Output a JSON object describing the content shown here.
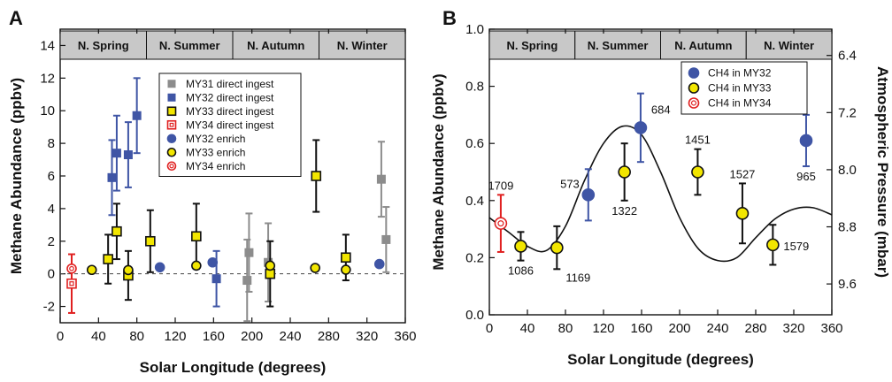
{
  "chart_data": [
    {
      "type": "scatter",
      "panel": "A",
      "xlabel": "Solar Longitude (degrees)",
      "ylabel": "Methane Abundance (ppbv)",
      "xlim": [
        0,
        360
      ],
      "ylim": [
        -3,
        15
      ],
      "xticks": [
        0,
        40,
        80,
        120,
        160,
        200,
        240,
        280,
        320,
        360
      ],
      "yticks": [
        -2,
        0,
        2,
        4,
        6,
        8,
        10,
        12,
        14
      ],
      "grid": false,
      "zero_line": "dashed",
      "legend_position": "top-center",
      "seasons": [
        {
          "label": "N. Spring",
          "start": 0,
          "end": 90
        },
        {
          "label": "N. Summer",
          "start": 90,
          "end": 180
        },
        {
          "label": "N. Autumn",
          "start": 180,
          "end": 270
        },
        {
          "label": "N. Winter",
          "start": 270,
          "end": 360
        }
      ],
      "series": [
        {
          "name": "MY31 direct ingest",
          "marker": "square",
          "fill": "#8c8c8c",
          "stroke": "#8c8c8c",
          "error_color": "#8c8c8c",
          "points": [
            {
              "x": 195,
              "y": -0.4,
              "err": 2.5
            },
            {
              "x": 197,
              "y": 1.3,
              "err": 2.4
            },
            {
              "x": 217,
              "y": 0.7,
              "err": 2.4
            },
            {
              "x": 335,
              "y": 5.8,
              "err": 2.3
            },
            {
              "x": 340,
              "y": 2.1,
              "err": 2.0
            }
          ]
        },
        {
          "name": "MY32 direct ingest",
          "marker": "square",
          "fill": "#3f55a5",
          "stroke": "#3f55a5",
          "error_color": "#3f55a5",
          "points": [
            {
              "x": 54,
              "y": 5.9,
              "err": 2.3
            },
            {
              "x": 59,
              "y": 7.4,
              "err": 2.3
            },
            {
              "x": 71,
              "y": 7.3,
              "err": 2.0
            },
            {
              "x": 80,
              "y": 9.7,
              "err": 2.3
            },
            {
              "x": 163,
              "y": -0.3,
              "err": 1.7
            }
          ]
        },
        {
          "name": "MY33 direct ingest",
          "marker": "square",
          "fill": "#f2e600",
          "stroke": "#111111",
          "error_color": "#111111",
          "points": [
            {
              "x": 50,
              "y": 0.9,
              "err": 1.5
            },
            {
              "x": 59,
              "y": 2.6,
              "err": 1.7
            },
            {
              "x": 71,
              "y": -0.1,
              "err": 1.5
            },
            {
              "x": 94,
              "y": 2.0,
              "err": 1.9
            },
            {
              "x": 142,
              "y": 2.3,
              "err": 2.0
            },
            {
              "x": 219,
              "y": 0.0,
              "err": 2.0
            },
            {
              "x": 267,
              "y": 6.0,
              "err": 2.2
            },
            {
              "x": 298,
              "y": 1.0,
              "err": 1.4
            }
          ]
        },
        {
          "name": "MY34 direct ingest",
          "marker": "open-square",
          "fill": "#ffffff",
          "stroke": "#e02020",
          "error_color": "#e02020",
          "points": [
            {
              "x": 12,
              "y": -0.6,
              "err": 1.8
            }
          ]
        },
        {
          "name": "MY32 enrich",
          "marker": "circle",
          "fill": "#3f55a5",
          "stroke": "#3f55a5",
          "error_color": "#3f55a5",
          "points": [
            {
              "x": 104,
              "y": 0.4,
              "err": 0
            },
            {
              "x": 159,
              "y": 0.7,
              "err": 0
            },
            {
              "x": 333,
              "y": 0.6,
              "err": 0
            }
          ]
        },
        {
          "name": "MY33 enrich",
          "marker": "circle",
          "fill": "#f2e600",
          "stroke": "#111111",
          "error_color": "#111111",
          "points": [
            {
              "x": 33,
              "y": 0.24,
              "err": 0
            },
            {
              "x": 71,
              "y": 0.23,
              "err": 0
            },
            {
              "x": 142,
              "y": 0.5,
              "err": 0
            },
            {
              "x": 219,
              "y": 0.5,
              "err": 0
            },
            {
              "x": 266,
              "y": 0.36,
              "err": 0
            },
            {
              "x": 298,
              "y": 0.25,
              "err": 0
            }
          ]
        },
        {
          "name": "MY34 enrich",
          "marker": "open-circle",
          "fill": "#ffffff",
          "stroke": "#e02020",
          "error_color": "#e02020",
          "points": [
            {
              "x": 12,
              "y": 0.32,
              "err": 0
            }
          ]
        }
      ]
    },
    {
      "type": "scatter",
      "panel": "B",
      "xlabel": "Solar Longitude (degrees)",
      "ylabel": "Methane Abundance (ppbv)",
      "y2label": "Atmospheric Pressure (mbar)",
      "xlim": [
        0,
        360
      ],
      "ylim": [
        0,
        1.0
      ],
      "xticks": [
        0,
        40,
        80,
        120,
        160,
        200,
        240,
        280,
        320,
        360
      ],
      "yticks": [
        0.0,
        0.2,
        0.4,
        0.6,
        0.8,
        1.0
      ],
      "yticks_labels": [
        "0.0",
        "0.2",
        "0.4",
        "0.6",
        "0.8",
        "1.0"
      ],
      "y2_ticks": [
        {
          "label": "6.4",
          "y": 0.908
        },
        {
          "label": "7.2",
          "y": 0.708
        },
        {
          "label": "8.0",
          "y": 0.508
        },
        {
          "label": "8.8",
          "y": 0.308
        },
        {
          "label": "9.6",
          "y": 0.108
        }
      ],
      "grid": false,
      "legend_position": "top-right",
      "seasons": [
        {
          "label": "N. Spring",
          "start": 0,
          "end": 90
        },
        {
          "label": "N. Summer",
          "start": 90,
          "end": 180
        },
        {
          "label": "N. Autumn",
          "start": 180,
          "end": 270
        },
        {
          "label": "N. Winter",
          "start": 270,
          "end": 360
        }
      ],
      "series": [
        {
          "name": "CH4 in MY32",
          "marker": "circle",
          "fill": "#3f55a5",
          "stroke": "#3f55a5",
          "error_color": "#3f55a5",
          "points": [
            {
              "x": 104,
              "y": 0.42,
              "err": 0.09,
              "label": "573",
              "label_pos": "left"
            },
            {
              "x": 159,
              "y": 0.655,
              "err": 0.12,
              "label": "684",
              "label_pos": "right"
            },
            {
              "x": 333,
              "y": 0.61,
              "err": 0.09,
              "label": "965",
              "label_pos": "below"
            }
          ]
        },
        {
          "name": "CH4 in MY33",
          "marker": "circle",
          "fill": "#f2e600",
          "stroke": "#111111",
          "error_color": "#111111",
          "points": [
            {
              "x": 33,
              "y": 0.24,
              "err": 0.05,
              "label": "1086",
              "label_pos": "below"
            },
            {
              "x": 71,
              "y": 0.235,
              "err": 0.075,
              "label": "1169",
              "label_pos": "below-right"
            },
            {
              "x": 142,
              "y": 0.5,
              "err": 0.1,
              "label": "1322",
              "label_pos": "below"
            },
            {
              "x": 219,
              "y": 0.5,
              "err": 0.08,
              "label": "1451",
              "label_pos": "above"
            },
            {
              "x": 266,
              "y": 0.355,
              "err": 0.105,
              "label": "1527",
              "label_pos": "above"
            },
            {
              "x": 298,
              "y": 0.245,
              "err": 0.07,
              "label": "1579",
              "label_pos": "right"
            }
          ]
        },
        {
          "name": "CH4 in MY34",
          "marker": "open-circle",
          "fill": "#ffffff",
          "stroke": "#e02020",
          "error_color": "#e02020",
          "points": [
            {
              "x": 12,
              "y": 0.32,
              "err": 0.1,
              "label": "1709",
              "label_pos": "above"
            }
          ]
        }
      ],
      "pressure_curve": [
        [
          0,
          0.34
        ],
        [
          20,
          0.29
        ],
        [
          40,
          0.24
        ],
        [
          60,
          0.225
        ],
        [
          80,
          0.31
        ],
        [
          100,
          0.47
        ],
        [
          120,
          0.6
        ],
        [
          140,
          0.66
        ],
        [
          160,
          0.63
        ],
        [
          180,
          0.5
        ],
        [
          200,
          0.34
        ],
        [
          220,
          0.23
        ],
        [
          240,
          0.19
        ],
        [
          260,
          0.2
        ],
        [
          280,
          0.27
        ],
        [
          300,
          0.335
        ],
        [
          320,
          0.37
        ],
        [
          340,
          0.375
        ],
        [
          360,
          0.35
        ]
      ]
    }
  ]
}
